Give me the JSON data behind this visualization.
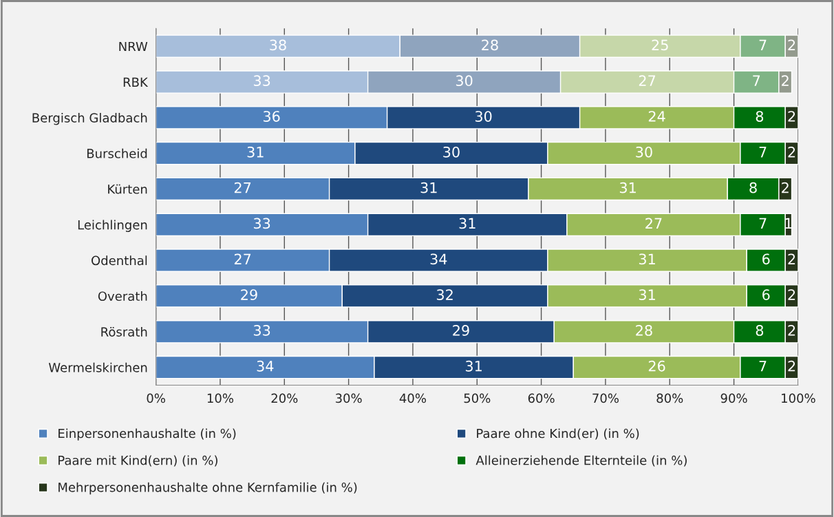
{
  "chart_data": {
    "type": "bar",
    "orientation": "horizontal",
    "stacked": true,
    "data_labels": true,
    "grid": "x",
    "legend": "bottom",
    "categories": [
      "NRW",
      "RBK",
      "Bergisch Gladbach",
      "Burscheid",
      "Kürten",
      "Leichlingen",
      "Odenthal",
      "Overath",
      "Rösrath",
      "Wermelskirchen"
    ],
    "xlim": [
      0,
      100
    ],
    "xticks": [
      {
        "value": 0,
        "label": "0%"
      },
      {
        "value": 10,
        "label": "10%"
      },
      {
        "value": 20,
        "label": "20%"
      },
      {
        "value": 30,
        "label": "30%"
      },
      {
        "value": 40,
        "label": "40%"
      },
      {
        "value": 50,
        "label": "50%"
      },
      {
        "value": 60,
        "label": "60%"
      },
      {
        "value": 70,
        "label": "70%"
      },
      {
        "value": 80,
        "label": "80%"
      },
      {
        "value": 90,
        "label": "90%"
      },
      {
        "value": 100,
        "label": "100%"
      }
    ],
    "series": [
      {
        "name": "Einpersonenhaushalte (in %)",
        "color": "#4f81bd",
        "colors": [
          "#a7bedb",
          "#a7bedb",
          "#4f81bd",
          "#4f81bd",
          "#4f81bd",
          "#4f81bd",
          "#4f81bd",
          "#4f81bd",
          "#4f81bd",
          "#4f81bd"
        ],
        "values": [
          38,
          33,
          36,
          31,
          27,
          33,
          27,
          29,
          33,
          34
        ]
      },
      {
        "name": "Paare ohne Kind(er) (in %)",
        "color": "#1f497d",
        "colors": [
          "#8fa4be",
          "#8fa4be",
          "#1f497d",
          "#1f497d",
          "#1f497d",
          "#1f497d",
          "#1f497d",
          "#1f497d",
          "#1f497d",
          "#1f497d"
        ],
        "values": [
          28,
          30,
          30,
          30,
          31,
          31,
          34,
          32,
          29,
          31
        ]
      },
      {
        "name": "Paare mit Kind(ern) (in %)",
        "color": "#9bbb59",
        "colors": [
          "#c6d7a9",
          "#c6d7a9",
          "#9bbb59",
          "#9bbb59",
          "#9bbb59",
          "#9bbb59",
          "#9bbb59",
          "#9bbb59",
          "#9bbb59",
          "#9bbb59"
        ],
        "values": [
          25,
          27,
          24,
          30,
          31,
          27,
          31,
          31,
          28,
          26
        ]
      },
      {
        "name": "Alleinerziehende Elternteile (in %)",
        "color": "#00700d",
        "colors": [
          "#7fb485",
          "#7fb485",
          "#00700d",
          "#00700d",
          "#00700d",
          "#00700d",
          "#00700d",
          "#00700d",
          "#00700d",
          "#00700d"
        ],
        "values": [
          7,
          7,
          8,
          7,
          8,
          7,
          6,
          6,
          8,
          7
        ]
      },
      {
        "name": "Mehrpersonenhaushalte ohne Kernfamilie (in %)",
        "color": "#27361b",
        "colors": [
          "#939a8d",
          "#939a8d",
          "#27361b",
          "#27361b",
          "#27361b",
          "#27361b",
          "#27361b",
          "#27361b",
          "#27361b",
          "#27361b"
        ],
        "values": [
          2,
          2,
          2,
          2,
          2,
          1,
          2,
          2,
          2,
          2
        ]
      }
    ]
  }
}
